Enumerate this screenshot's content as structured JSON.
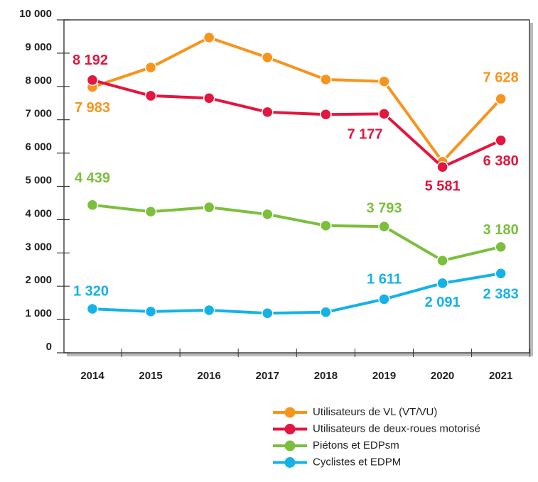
{
  "chart_data": {
    "type": "line",
    "categories": [
      "2014",
      "2015",
      "2016",
      "2017",
      "2018",
      "2019",
      "2020",
      "2021"
    ],
    "series": [
      {
        "name": "Utilisateurs de VL (VT/VU)",
        "color": "#f7941d",
        "values": [
          7983,
          8570,
          9470,
          8870,
          8210,
          8150,
          5740,
          7628
        ],
        "value_labels": [
          "7 983",
          null,
          null,
          null,
          null,
          null,
          null,
          "7 628"
        ]
      },
      {
        "name": "Utilisateurs de deux-roues motorisé",
        "color": "#e2163f",
        "values": [
          8192,
          7720,
          7650,
          7230,
          7160,
          7177,
          5581,
          6380
        ],
        "value_labels": [
          "8 192",
          null,
          null,
          null,
          null,
          "7 177",
          "5 581",
          "6 380"
        ]
      },
      {
        "name": "Piétons et EDPsm",
        "color": "#7bbf3c",
        "values": [
          4439,
          4240,
          4370,
          4160,
          3820,
          3793,
          2770,
          3180
        ],
        "value_labels": [
          "4 439",
          null,
          null,
          null,
          null,
          "3 793",
          null,
          "3 180"
        ]
      },
      {
        "name": "Cyclistes et EDPM",
        "color": "#14b2e6",
        "values": [
          1320,
          1240,
          1280,
          1190,
          1220,
          1611,
          2091,
          2383
        ],
        "value_labels": [
          "1 320",
          null,
          null,
          null,
          null,
          "1 611",
          "2 091",
          "2 383"
        ]
      }
    ],
    "ylim": [
      0,
      10000
    ],
    "yticks": [
      0,
      {
        "value": 1000,
        "label": "1 000"
      },
      {
        "value": 2000,
        "label": "2 000"
      },
      {
        "value": 3000,
        "label": "3 000"
      },
      {
        "value": 4000,
        "label": "4 000"
      },
      {
        "value": 5000,
        "label": "5 000"
      },
      {
        "value": 6000,
        "label": "6 000"
      },
      {
        "value": 7000,
        "label": "7 000"
      },
      {
        "value": 8000,
        "label": "8 000"
      },
      {
        "value": 9000,
        "label": "9 000"
      },
      {
        "value": 10000,
        "label": "10 000"
      }
    ],
    "grid": false,
    "legend": "bottom"
  }
}
